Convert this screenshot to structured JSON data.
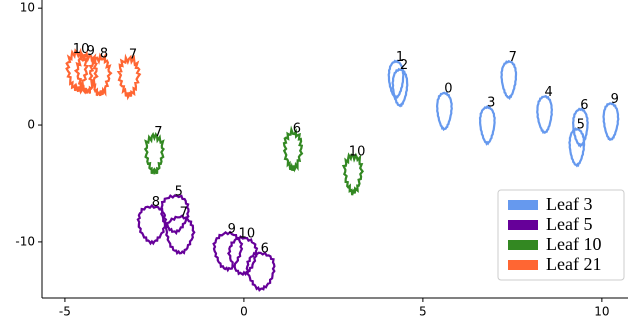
{
  "chart_data": {
    "type": "scatter",
    "xlim": [
      -5.64,
      10.73
    ],
    "ylim": [
      -14.8,
      10.7
    ],
    "xticks": [
      -5,
      0,
      5,
      10
    ],
    "yticks": [
      -10,
      0,
      10
    ],
    "legend": "lower right",
    "series": [
      {
        "name": "Leaf 3",
        "color": "#6699ee",
        "x": [
          4.25,
          4.36,
          5.6,
          6.8,
          7.4,
          8.4,
          9.4,
          9.3,
          10.25
        ],
        "values": [
          3.9,
          3.2,
          1.2,
          0,
          3.9,
          0.9,
          -0.2,
          -1.9,
          0.3
        ],
        "labels": [
          "1",
          "2",
          "0",
          "3",
          "7",
          "4",
          "6",
          "5",
          "9"
        ]
      },
      {
        "name": "Leaf 5",
        "color": "#660099",
        "x": [
          -2.57,
          -1.93,
          -1.79,
          -0.45,
          -0.03,
          0.47
        ],
        "values": [
          -8.5,
          -7.6,
          -9.4,
          -10.8,
          -11.2,
          -12.5
        ],
        "labels": [
          "8",
          "5",
          "7",
          "9",
          "10",
          "6"
        ]
      },
      {
        "name": "Leaf 10",
        "color": "#338822",
        "x": [
          -2.5,
          1.37,
          3.05
        ],
        "values": [
          -2.5,
          -2.2,
          -4.2
        ],
        "labels": [
          "7",
          "6",
          "10"
        ]
      },
      {
        "name": "Leaf 21",
        "color": "#ff6633",
        "x": [
          -4.66,
          -4.39,
          -4.02,
          -3.21
        ],
        "values": [
          4.6,
          4.4,
          4.2,
          4.1
        ],
        "labels": [
          "10",
          "9",
          "8",
          "7"
        ]
      }
    ]
  }
}
